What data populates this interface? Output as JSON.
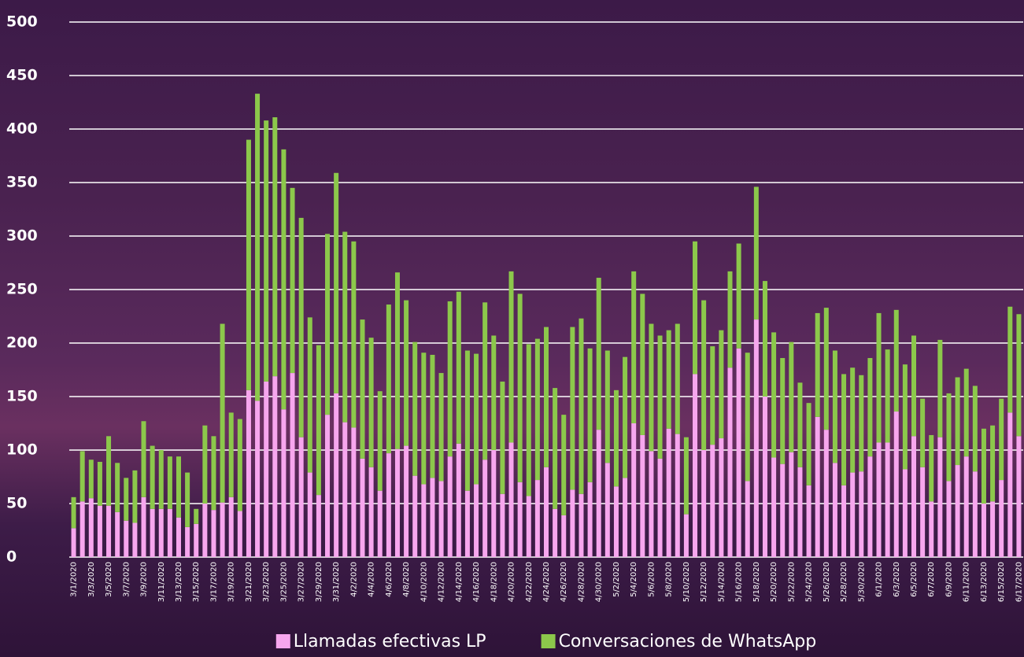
{
  "chart_data": {
    "type": "stacked-bar",
    "categories": [
      "3/1/2020",
      null,
      "3/3/2020",
      null,
      "3/5/2020",
      null,
      "3/7/2020",
      null,
      "3/9/2020",
      null,
      "3/11/2020",
      null,
      "3/13/2020",
      null,
      "3/15/2020",
      null,
      "3/17/2020",
      null,
      "3/19/2020",
      null,
      "3/21/2020",
      null,
      "3/23/2020",
      null,
      "3/25/2020",
      null,
      "3/27/2020",
      null,
      "3/29/2020",
      null,
      "3/31/2020",
      null,
      "4/2/2020",
      null,
      "4/4/2020",
      null,
      "4/6/2020",
      null,
      "4/8/2020",
      null,
      "4/10/2020",
      null,
      "4/12/2020",
      null,
      "4/14/2020",
      null,
      "4/16/2020",
      null,
      "4/18/2020",
      null,
      "4/20/2020",
      null,
      "4/22/2020",
      null,
      "4/24/2020",
      null,
      "4/26/2020",
      null,
      "4/28/2020",
      null,
      "4/30/2020",
      null,
      "5/2/2020",
      null,
      "5/4/2020",
      null,
      "5/6/2020",
      null,
      "5/8/2020",
      null,
      "5/10/2020",
      null,
      "5/12/2020",
      null,
      "5/14/2020",
      null,
      "5/16/2020",
      null,
      "5/18/2020",
      null,
      "5/20/2020",
      null,
      "5/22/2020",
      null,
      "5/24/2020",
      null,
      "5/26/2020",
      null,
      "5/28/2020",
      null,
      "5/30/2020",
      null,
      "6/1/2020",
      null,
      "6/3/2020",
      null,
      "6/5/2020",
      null,
      "6/7/2020",
      null,
      "6/9/2020",
      null,
      "6/11/2020",
      null,
      "6/13/2020",
      null,
      "6/15/2020",
      null,
      "6/17/2020"
    ],
    "series": [
      {
        "name": "Llamadas efectivas LP",
        "color": "#f7a6ee",
        "values": [
          27,
          52,
          55,
          48,
          48,
          42,
          34,
          32,
          56,
          45,
          45,
          45,
          37,
          28,
          31,
          50,
          44,
          51,
          56,
          43,
          156,
          146,
          164,
          169,
          138,
          172,
          112,
          79,
          58,
          133,
          153,
          126,
          121,
          92,
          84,
          62,
          97,
          101,
          104,
          76,
          68,
          74,
          71,
          94,
          106,
          62,
          68,
          91,
          100,
          59,
          107,
          70,
          57,
          72,
          84,
          45,
          39,
          63,
          59,
          70,
          119,
          88,
          66,
          74,
          125,
          114,
          99,
          92,
          120,
          115,
          40,
          171,
          100,
          105,
          111,
          177,
          195,
          71,
          222,
          150,
          93,
          87,
          98,
          84,
          67,
          131,
          119,
          88,
          67,
          79,
          80,
          94,
          107,
          107,
          136,
          82,
          113,
          84,
          52,
          112,
          71,
          86,
          94,
          80,
          50,
          52,
          72,
          135,
          113
        ]
      },
      {
        "name": "Conversaciones de WhatsApp",
        "color": "#8cc84b",
        "values": [
          29,
          47,
          36,
          41,
          65,
          46,
          40,
          49,
          71,
          59,
          55,
          49,
          57,
          51,
          14,
          73,
          69,
          167,
          79,
          86,
          234,
          287,
          244,
          242,
          243,
          173,
          205,
          145,
          140,
          169,
          206,
          178,
          174,
          130,
          121,
          93,
          139,
          165,
          136,
          125,
          123,
          115,
          101,
          145,
          142,
          131,
          122,
          147,
          107,
          105,
          160,
          176,
          142,
          132,
          131,
          113,
          94,
          152,
          164,
          125,
          142,
          105,
          90,
          113,
          142,
          132,
          119,
          115,
          92,
          103,
          72,
          124,
          140,
          92,
          101,
          90,
          98,
          120,
          124,
          108,
          117,
          99,
          103,
          79,
          77,
          97,
          114,
          105,
          104,
          98,
          90,
          92,
          121,
          87,
          95,
          98,
          94,
          64,
          62,
          91,
          82,
          82,
          82,
          80,
          70,
          71,
          76,
          99,
          114
        ]
      }
    ],
    "ylim": [
      0,
      500
    ],
    "yticks": [
      0,
      50,
      100,
      150,
      200,
      250,
      300,
      350,
      400,
      450,
      500
    ],
    "grid": true,
    "legend": "bottom"
  }
}
